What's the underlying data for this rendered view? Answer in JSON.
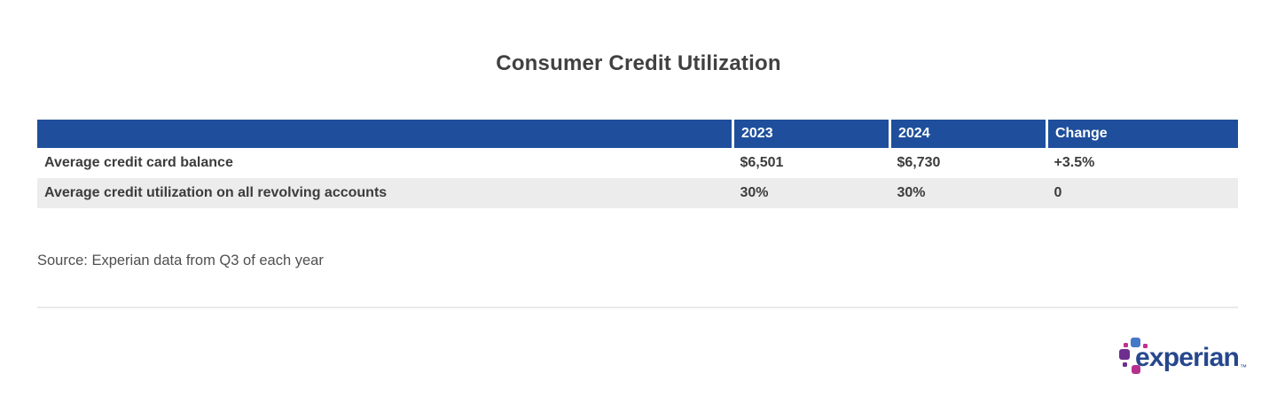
{
  "page": {
    "title": "Consumer Credit Utilization",
    "source_note": "Source: Experian data from Q3 of each year"
  },
  "table": {
    "columns": [
      "",
      "2023",
      "2024",
      "Change"
    ],
    "rows": [
      {
        "label": "Average credit card balance",
        "values": [
          "$6,501",
          "$6,730",
          "+3.5%"
        ]
      },
      {
        "label": "Average credit utilization on all revolving accounts",
        "values": [
          "30%",
          "30%",
          "0"
        ]
      }
    ]
  },
  "logo": {
    "wordmark": "experian",
    "trademark": "™",
    "icon_squares": [
      "blue-square",
      "magenta-dot-top-left",
      "magenta-dot-right-of-blue",
      "purple-square",
      "purple-dot-bottom-left",
      "magenta-square-bottom"
    ]
  },
  "colors": {
    "header_blue": "#1f4f9c",
    "row_alt_gray": "#ececec",
    "body_text": "#3c3c3c",
    "title_text": "#414141",
    "source_text": "#4f4f4f",
    "divider_gray": "#e9e9e9",
    "logo_navy": "#26478d",
    "logo_blue": "#4678c8",
    "logo_purple": "#6d2f8e",
    "logo_magenta": "#b5308f",
    "logo_pink": "#c2308e"
  },
  "chart_data": {
    "type": "table",
    "title": "Consumer Credit Utilization",
    "columns": [
      "",
      "2023",
      "2024",
      "Change"
    ],
    "rows": [
      [
        "Average credit card balance",
        "$6,501",
        "$6,730",
        "+3.5%"
      ],
      [
        "Average credit utilization on all revolving accounts",
        "30%",
        "30%",
        "0"
      ]
    ],
    "source": "Source: Experian data from Q3 of each year",
    "notes": "Blue header row (#1f4f9c) with white bold column labels; second data row shaded light gray; values bold dark gray"
  }
}
